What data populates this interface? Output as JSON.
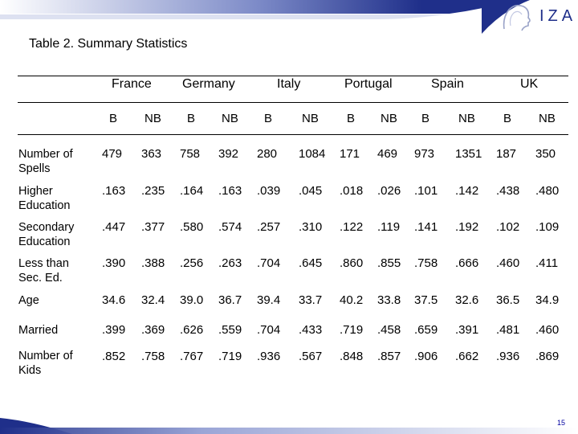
{
  "brand": {
    "logo_text": "IZA"
  },
  "title": "Table 2. Summary Statistics",
  "countries": [
    "France",
    "Germany",
    "Italy",
    "Portugal",
    "Spain",
    "UK"
  ],
  "subheaders": [
    "B",
    "NB",
    "B",
    "NB",
    "B",
    "NB",
    "B",
    "NB",
    "B",
    "NB",
    "B",
    "NB"
  ],
  "rows": [
    {
      "label": [
        "Number of",
        "Spells"
      ],
      "values": [
        "479",
        "363",
        "758",
        "392",
        "280",
        "1084",
        "171",
        "469",
        "973",
        "1351",
        "187",
        "350"
      ]
    },
    {
      "label": [
        "Higher",
        "Education"
      ],
      "values": [
        ".163",
        ".235",
        ".164",
        ".163",
        ".039",
        ".045",
        ".018",
        ".026",
        ".101",
        ".142",
        ".438",
        ".480"
      ]
    },
    {
      "label": [
        "Secondary",
        "Education"
      ],
      "values": [
        ".447",
        ".377",
        ".580",
        ".574",
        ".257",
        ".310",
        ".122",
        ".119",
        ".141",
        ".192",
        ".102",
        ".109"
      ]
    },
    {
      "label": [
        "Less than",
        "Sec. Ed."
      ],
      "values": [
        ".390",
        ".388",
        ".256",
        ".263",
        ".704",
        ".645",
        ".860",
        ".855",
        ".758",
        ".666",
        ".460",
        ".411"
      ]
    },
    {
      "label": [
        "Age"
      ],
      "values": [
        "34.6",
        "32.4",
        "39.0",
        "36.7",
        "39.4",
        "33.7",
        "40.2",
        "33.8",
        "37.5",
        "32.6",
        "36.5",
        "34.9"
      ]
    },
    {
      "label": [
        "Married"
      ],
      "values": [
        ".399",
        ".369",
        ".626",
        ".559",
        ".704",
        ".433",
        ".719",
        ".458",
        ".659",
        ".391",
        ".481",
        ".460"
      ]
    },
    {
      "label": [
        "Number of",
        "Kids"
      ],
      "values": [
        ".852",
        ".758",
        ".767",
        ".719",
        ".936",
        ".567",
        ".848",
        ".857",
        ".906",
        ".662",
        ".936",
        ".869"
      ]
    }
  ],
  "slide_number": "15",
  "colors": {
    "brand_blue": "#1f2f8a",
    "light_blue": "#d9ddf0"
  }
}
